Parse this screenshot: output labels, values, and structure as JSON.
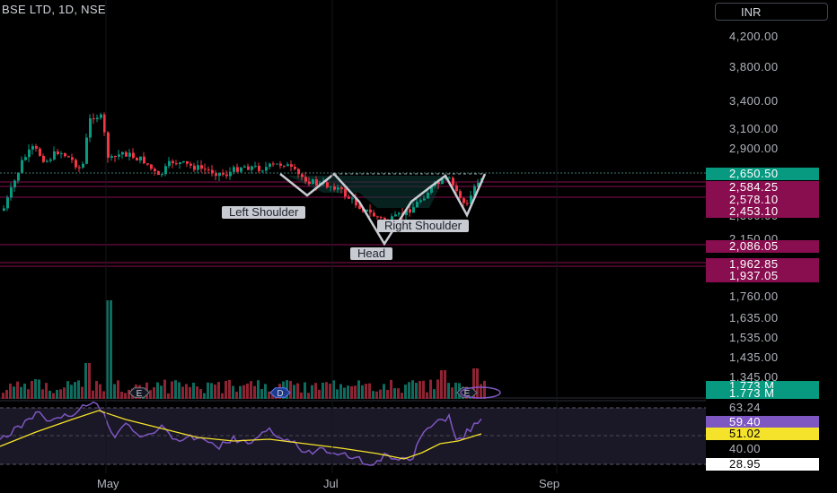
{
  "header": {
    "symbol_title": "BSE LTD, 1D, NSE",
    "currency": "INR"
  },
  "price_axis": [
    {
      "label": "4,200.00",
      "value": 4200
    },
    {
      "label": "3,800.00",
      "value": 3800
    },
    {
      "label": "3,400.00",
      "value": 3400
    },
    {
      "label": "3,100.00",
      "value": 3100
    },
    {
      "label": "2,900.00",
      "value": 2900
    },
    {
      "label": "2,300.00",
      "value": 2300
    },
    {
      "label": "2,150.00",
      "value": 2150
    },
    {
      "label": "1,760.00",
      "value": 1760
    },
    {
      "label": "1,635.00",
      "value": 1635
    },
    {
      "label": "1,535.00",
      "value": 1535
    },
    {
      "label": "1,435.00",
      "value": 1435
    },
    {
      "label": "1,345.00",
      "value": 1345
    }
  ],
  "price_badges": [
    {
      "label": "2,650.50",
      "color": "#089981",
      "value": 2650.5
    },
    {
      "label": "2,584.25",
      "color": "#880e4f",
      "value": 2584.25
    },
    {
      "label": "2,578.10",
      "color": "#880e4f",
      "value": 2578.1
    },
    {
      "label": "2,453.10",
      "color": "#880e4f",
      "value": 2453.1
    },
    {
      "label": "2,086.05",
      "color": "#880e4f",
      "value": 2086.05
    },
    {
      "label": "1,962.85",
      "color": "#880e4f",
      "value": 1962.85
    },
    {
      "label": "1,937.05",
      "color": "#880e4f",
      "value": 1937.05
    }
  ],
  "volume_badges": [
    {
      "label": "1.773 M",
      "color": "#089981"
    },
    {
      "label": "1.773 M",
      "color": "#089981"
    }
  ],
  "rsi_axis": [
    {
      "label": "63.24",
      "kind": "plain"
    },
    {
      "label": "59.40",
      "kind": "rsi",
      "color": "#7e57c2"
    },
    {
      "label": "51.02",
      "kind": "ma",
      "color": "#f5e32b"
    },
    {
      "label": "40.00",
      "kind": "plain"
    },
    {
      "label": "28.95",
      "kind": "white"
    }
  ],
  "time_axis": [
    "May",
    "Jul",
    "Sep"
  ],
  "pattern_labels": {
    "left_shoulder": "Left Shoulder",
    "head": "Head",
    "right_shoulder": "Right Shoulder"
  },
  "event_markers": [
    "E",
    "D",
    "E"
  ],
  "colors": {
    "up": "#089981",
    "down": "#f23645",
    "rsi": "#7e57c2",
    "rsi_ma": "#f5e32b",
    "pattern": "#c8cbd2"
  }
}
